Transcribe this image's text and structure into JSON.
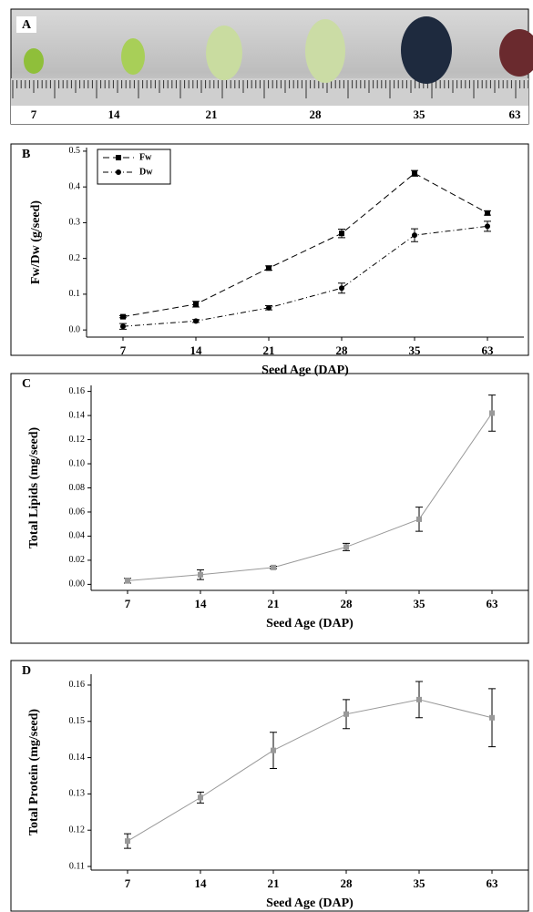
{
  "photo": {
    "label": "A",
    "labels": [
      "7",
      "14",
      "21",
      "28",
      "35",
      "63"
    ]
  },
  "chart_data": [
    {
      "type": "line",
      "label": "B",
      "xlabel": "Seed Age (DAP)",
      "ylabel": "Fw/Dw (g/seed)",
      "categories": [
        "7",
        "14",
        "21",
        "28",
        "35",
        "63"
      ],
      "ylim": [
        -0.02,
        0.51
      ],
      "yticks": [
        {
          "value": 0,
          "label": "0.0"
        },
        0.1,
        0.2,
        0.3,
        0.4,
        0.5
      ],
      "legend": "top-left",
      "series": [
        {
          "name": "Fw",
          "color": "#000000",
          "dash": "7,4",
          "marker": "square",
          "values": [
            0.037,
            0.072,
            0.173,
            0.27,
            0.438,
            0.327
          ],
          "errors": [
            0.003,
            0.008,
            0.006,
            0.012,
            0.008,
            0.006
          ]
        },
        {
          "name": "Dw",
          "color": "#000000",
          "dash": "6,3,1,3",
          "marker": "circle",
          "values": [
            0.01,
            0.025,
            0.062,
            0.117,
            0.265,
            0.29
          ],
          "errors": [
            0.008,
            0.004,
            0.006,
            0.014,
            0.018,
            0.014
          ]
        }
      ]
    },
    {
      "type": "line",
      "label": "C",
      "xlabel": "Seed Age (DAP)",
      "ylabel": "Total Lipids (mg/seed)",
      "categories": [
        "7",
        "14",
        "21",
        "28",
        "35",
        "63"
      ],
      "ylim": [
        -0.005,
        0.165
      ],
      "yticks": [
        {
          "value": 0,
          "label": "0.00"
        },
        0.02,
        0.04,
        0.06,
        0.08,
        {
          "value": 0.1,
          "label": "0.10"
        },
        0.12,
        0.14,
        0.16
      ],
      "series": [
        {
          "color": "#999999",
          "marker": "square",
          "values": [
            0.003,
            0.008,
            0.014,
            0.031,
            0.054,
            0.142
          ],
          "errors": [
            0.002,
            0.004,
            0.001,
            0.003,
            0.01,
            0.015
          ]
        }
      ]
    },
    {
      "type": "line",
      "label": "D",
      "xlabel": "Seed Age (DAP)",
      "ylabel": "Total Protein (mg/seed)",
      "categories": [
        "7",
        "14",
        "21",
        "28",
        "35",
        "63"
      ],
      "ylim": [
        0.109,
        0.163
      ],
      "yticks": [
        0.11,
        0.12,
        0.13,
        0.14,
        0.15,
        0.16
      ],
      "series": [
        {
          "color": "#999999",
          "marker": "square",
          "values": [
            0.117,
            0.129,
            0.142,
            0.152,
            0.156,
            0.151
          ],
          "errors": [
            0.002,
            0.0015,
            0.005,
            0.004,
            0.005,
            0.008
          ]
        }
      ]
    }
  ]
}
